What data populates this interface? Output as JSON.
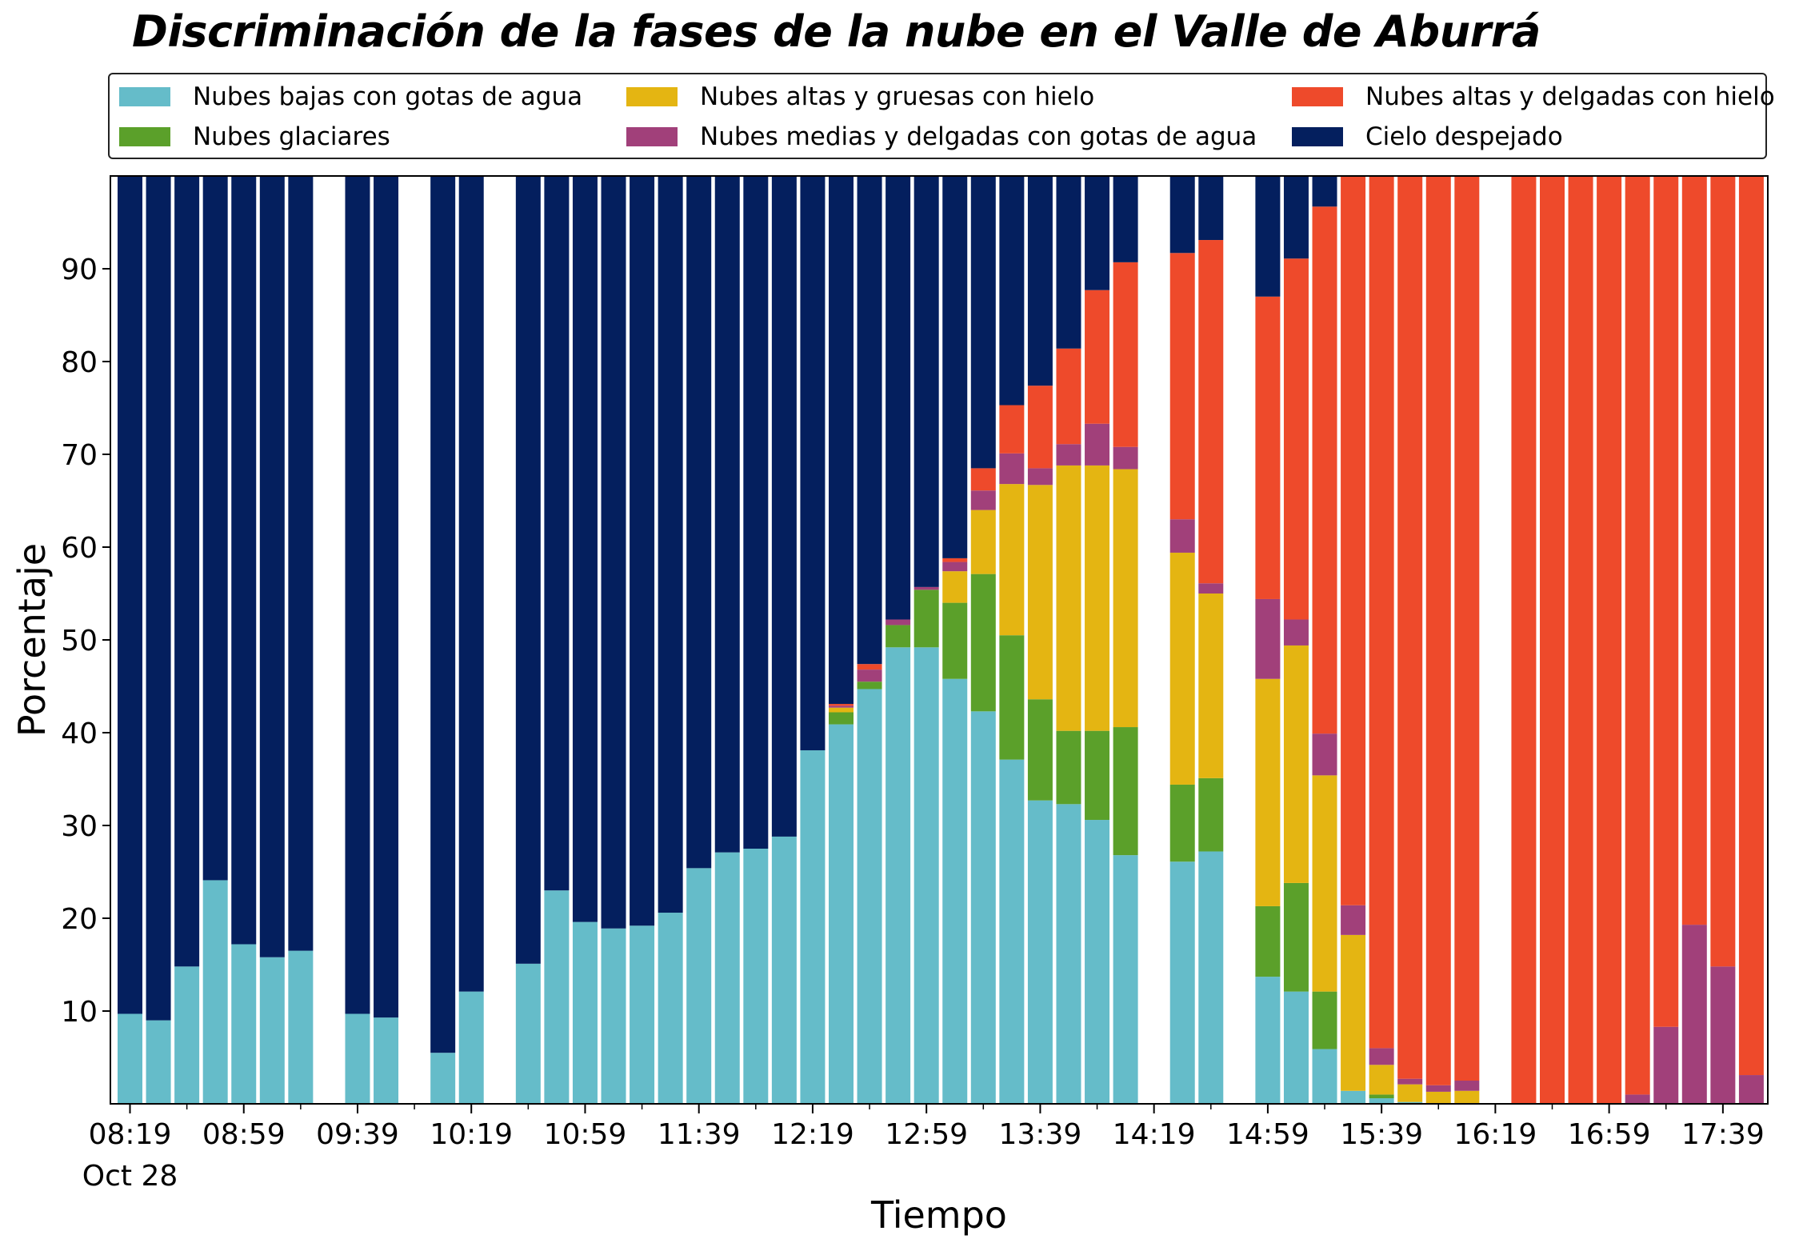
{
  "chart_data": {
    "type": "bar",
    "stacked": true,
    "title": "Discriminación de la fases de la nube en el Valle de Aburrá",
    "xlabel": "Tiempo",
    "ylabel": "Porcentaje",
    "ylim": [
      0,
      100
    ],
    "yticks": [
      10,
      20,
      30,
      40,
      50,
      60,
      70,
      80,
      90
    ],
    "xtick_labels": [
      "08:19",
      "08:59",
      "09:39",
      "10:19",
      "10:59",
      "11:39",
      "12:19",
      "12:59",
      "13:39",
      "14:19",
      "14:59",
      "15:39",
      "16:19",
      "16:59",
      "17:39"
    ],
    "x_date_label": "Oct 28",
    "grid": false,
    "legend_position": "top",
    "series": [
      {
        "name": "Nubes bajas con gotas de agua",
        "color": "#65bcc9"
      },
      {
        "name": "Nubes glaciares",
        "color": "#5ba02a"
      },
      {
        "name": "Nubes altas y gruesas con hielo",
        "color": "#e4b512"
      },
      {
        "name": "Nubes medias y delgadas con gotas de agua",
        "color": "#a1407a"
      },
      {
        "name": "Nubes altas y delgadas con hielo",
        "color": "#ee4a2b"
      },
      {
        "name": "Cielo despejado",
        "color": "#041f5e"
      }
    ],
    "legend_order": [
      0,
      2,
      4,
      1,
      3,
      5
    ],
    "bars": [
      {
        "time": "08:19",
        "values": [
          9.7,
          0,
          0,
          0,
          0,
          90.3
        ]
      },
      {
        "time": "08:29",
        "values": [
          9.0,
          0,
          0,
          0,
          0,
          91.0
        ]
      },
      {
        "time": "08:39",
        "values": [
          14.8,
          0,
          0,
          0,
          0,
          85.2
        ]
      },
      {
        "time": "08:49",
        "values": [
          24.1,
          0,
          0,
          0,
          0,
          75.9
        ]
      },
      {
        "time": "08:59",
        "values": [
          17.2,
          0,
          0,
          0,
          0,
          82.8
        ]
      },
      {
        "time": "09:09",
        "values": [
          15.8,
          0,
          0,
          0,
          0,
          84.2
        ]
      },
      {
        "time": "09:19",
        "values": [
          16.5,
          0,
          0,
          0,
          0,
          83.5
        ]
      },
      {
        "time": "09:39",
        "values": [
          9.7,
          0,
          0,
          0,
          0,
          90.3
        ]
      },
      {
        "time": "09:49",
        "values": [
          9.3,
          0,
          0,
          0,
          0,
          90.7
        ]
      },
      {
        "time": "10:09",
        "values": [
          5.5,
          0,
          0,
          0,
          0,
          94.5
        ]
      },
      {
        "time": "10:19",
        "values": [
          12.1,
          0,
          0,
          0,
          0,
          87.9
        ]
      },
      {
        "time": "10:39",
        "values": [
          15.1,
          0,
          0,
          0,
          0,
          84.9
        ]
      },
      {
        "time": "10:49",
        "values": [
          23.0,
          0,
          0,
          0,
          0,
          77.0
        ]
      },
      {
        "time": "10:59",
        "values": [
          19.6,
          0,
          0,
          0,
          0,
          80.4
        ]
      },
      {
        "time": "11:09",
        "values": [
          18.9,
          0,
          0,
          0,
          0,
          81.1
        ]
      },
      {
        "time": "11:19",
        "values": [
          19.2,
          0,
          0,
          0,
          0,
          80.8
        ]
      },
      {
        "time": "11:29",
        "values": [
          20.6,
          0,
          0,
          0,
          0,
          79.4
        ]
      },
      {
        "time": "11:39",
        "values": [
          25.4,
          0,
          0,
          0,
          0,
          74.6
        ]
      },
      {
        "time": "11:49",
        "values": [
          27.1,
          0,
          0,
          0,
          0,
          72.9
        ]
      },
      {
        "time": "11:59",
        "values": [
          27.5,
          0,
          0,
          0,
          0,
          72.5
        ]
      },
      {
        "time": "12:09",
        "values": [
          28.8,
          0,
          0,
          0,
          0,
          71.2
        ]
      },
      {
        "time": "12:19",
        "values": [
          38.1,
          0,
          0,
          0,
          0,
          61.9
        ]
      },
      {
        "time": "12:29",
        "values": [
          40.9,
          1.3,
          0.5,
          0.2,
          0.2,
          56.9
        ]
      },
      {
        "time": "12:39",
        "values": [
          44.7,
          0.8,
          0,
          1.3,
          0.6,
          52.6
        ]
      },
      {
        "time": "12:49",
        "values": [
          49.2,
          2.4,
          0,
          0.6,
          0,
          47.8
        ]
      },
      {
        "time": "12:59",
        "values": [
          49.2,
          6.2,
          0,
          0.3,
          0,
          44.3
        ]
      },
      {
        "time": "13:09",
        "values": [
          45.8,
          8.2,
          3.4,
          1.0,
          0.4,
          41.2
        ]
      },
      {
        "time": "13:19",
        "values": [
          42.3,
          14.8,
          6.9,
          2.1,
          2.4,
          31.5
        ]
      },
      {
        "time": "13:29",
        "values": [
          37.1,
          13.4,
          16.3,
          3.3,
          5.2,
          24.7
        ]
      },
      {
        "time": "13:39",
        "values": [
          32.7,
          10.9,
          23.1,
          1.8,
          8.9,
          22.6
        ]
      },
      {
        "time": "13:49",
        "values": [
          32.3,
          7.9,
          28.6,
          2.3,
          10.3,
          18.6
        ]
      },
      {
        "time": "13:59",
        "values": [
          30.6,
          9.6,
          28.6,
          4.5,
          14.4,
          12.3
        ]
      },
      {
        "time": "14:09",
        "values": [
          26.8,
          13.8,
          27.8,
          2.4,
          19.9,
          9.3
        ]
      },
      {
        "time": "14:29",
        "values": [
          26.1,
          8.3,
          25.0,
          3.6,
          28.7,
          8.3
        ]
      },
      {
        "time": "14:39",
        "values": [
          27.2,
          7.9,
          19.9,
          1.1,
          37.0,
          6.9
        ]
      },
      {
        "time": "14:59",
        "values": [
          13.7,
          7.6,
          24.5,
          8.6,
          32.6,
          13.0
        ]
      },
      {
        "time": "15:09",
        "values": [
          12.1,
          11.7,
          25.6,
          2.8,
          38.9,
          8.9
        ]
      },
      {
        "time": "15:19",
        "values": [
          5.9,
          6.2,
          23.3,
          4.5,
          56.8,
          3.3
        ]
      },
      {
        "time": "15:29",
        "values": [
          1.4,
          0,
          16.8,
          3.2,
          78.6,
          0
        ]
      },
      {
        "time": "15:39",
        "values": [
          0.6,
          0.4,
          3.2,
          1.8,
          94.0,
          0
        ]
      },
      {
        "time": "15:49",
        "values": [
          0.2,
          0,
          1.9,
          0.6,
          97.3,
          0
        ]
      },
      {
        "time": "15:59",
        "values": [
          0,
          0,
          1.3,
          0.7,
          98.0,
          0
        ]
      },
      {
        "time": "16:09",
        "values": [
          0,
          0,
          1.4,
          1.1,
          97.5,
          0
        ]
      },
      {
        "time": "16:29",
        "values": [
          0,
          0,
          0,
          0,
          100,
          0
        ]
      },
      {
        "time": "16:39",
        "values": [
          0,
          0,
          0,
          0,
          100,
          0
        ]
      },
      {
        "time": "16:49",
        "values": [
          0,
          0,
          0,
          0,
          100,
          0
        ]
      },
      {
        "time": "16:59",
        "values": [
          0,
          0,
          0,
          0,
          100,
          0
        ]
      },
      {
        "time": "17:09",
        "values": [
          0,
          0,
          0,
          1.0,
          99.0,
          0
        ]
      },
      {
        "time": "17:19",
        "values": [
          0,
          0,
          0,
          8.3,
          91.7,
          0
        ]
      },
      {
        "time": "17:29",
        "values": [
          0,
          0,
          0,
          19.3,
          80.7,
          0
        ]
      },
      {
        "time": "17:39",
        "values": [
          0,
          0,
          0,
          14.8,
          85.2,
          0
        ]
      },
      {
        "time": "17:49",
        "values": [
          0,
          0,
          0,
          3.1,
          96.9,
          0
        ]
      }
    ]
  }
}
